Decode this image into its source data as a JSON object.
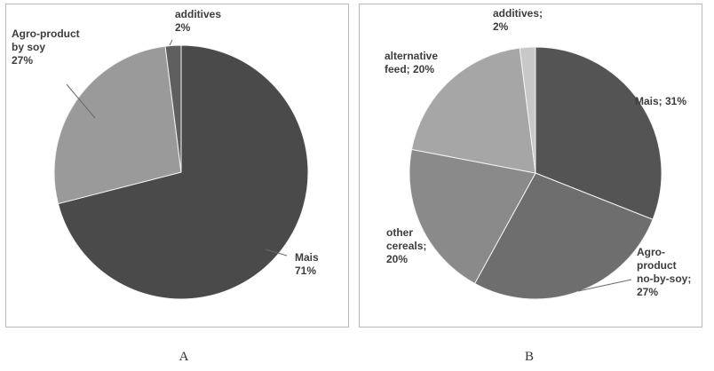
{
  "chart_data": [
    {
      "type": "pie",
      "panel_label": "A",
      "slices": [
        {
          "label_lines": [
            "Mais",
            "71%"
          ],
          "value": 71,
          "color": "#4a4a4a"
        },
        {
          "label_lines": [
            "Agro-product",
            "by soy",
            "27%"
          ],
          "value": 27,
          "color": "#9a9a9a"
        },
        {
          "label_lines": [
            "additives",
            "2%"
          ],
          "value": 2,
          "color": "#5f5f5f"
        }
      ]
    },
    {
      "type": "pie",
      "panel_label": "B",
      "slices": [
        {
          "label_lines": [
            "Mais; 31%"
          ],
          "value": 31,
          "color": "#545454"
        },
        {
          "label_lines": [
            "Agro-",
            "product",
            "no-by-soy;",
            "27%"
          ],
          "value": 27,
          "color": "#6e6e6e"
        },
        {
          "label_lines": [
            "other",
            "cereals;",
            "20%"
          ],
          "value": 20,
          "color": "#8a8a8a"
        },
        {
          "label_lines": [
            "alternative",
            "feed; 20%"
          ],
          "value": 20,
          "color": "#a6a6a6"
        },
        {
          "label_lines": [
            "additives;",
            "2%"
          ],
          "value": 2,
          "color": "#c8c8c8"
        }
      ]
    }
  ]
}
